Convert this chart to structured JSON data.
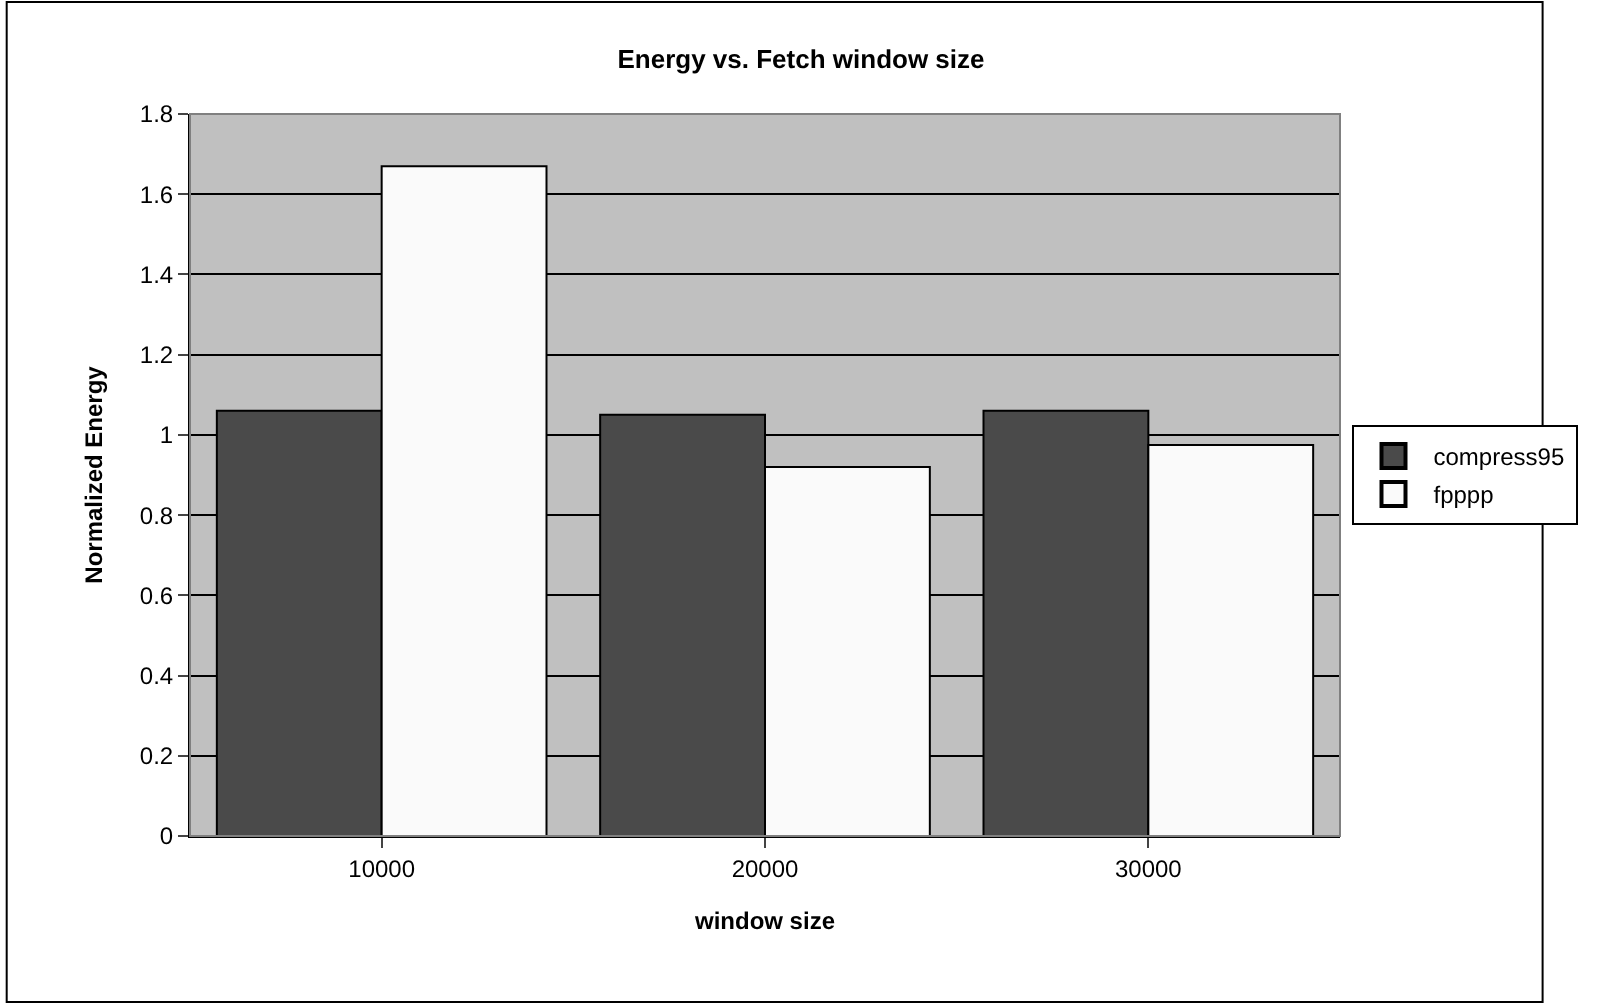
{
  "chart_data": {
    "type": "bar",
    "title": "Energy vs. Fetch window size",
    "xlabel": "window size",
    "ylabel": "Normalized Energy",
    "categories": [
      "10000",
      "20000",
      "30000"
    ],
    "series": [
      {
        "name": "compress95",
        "color": "#4a4a4a",
        "values": [
          1.06,
          1.05,
          1.06
        ]
      },
      {
        "name": "fpppp",
        "color": "#fafafa",
        "values": [
          1.67,
          0.92,
          0.975
        ]
      }
    ],
    "ylim": [
      0,
      1.8
    ],
    "yticks": [
      0,
      0.2,
      0.4,
      0.6,
      0.8,
      1,
      1.2,
      1.4,
      1.6,
      1.8
    ],
    "grid": "y",
    "legend": "right"
  }
}
